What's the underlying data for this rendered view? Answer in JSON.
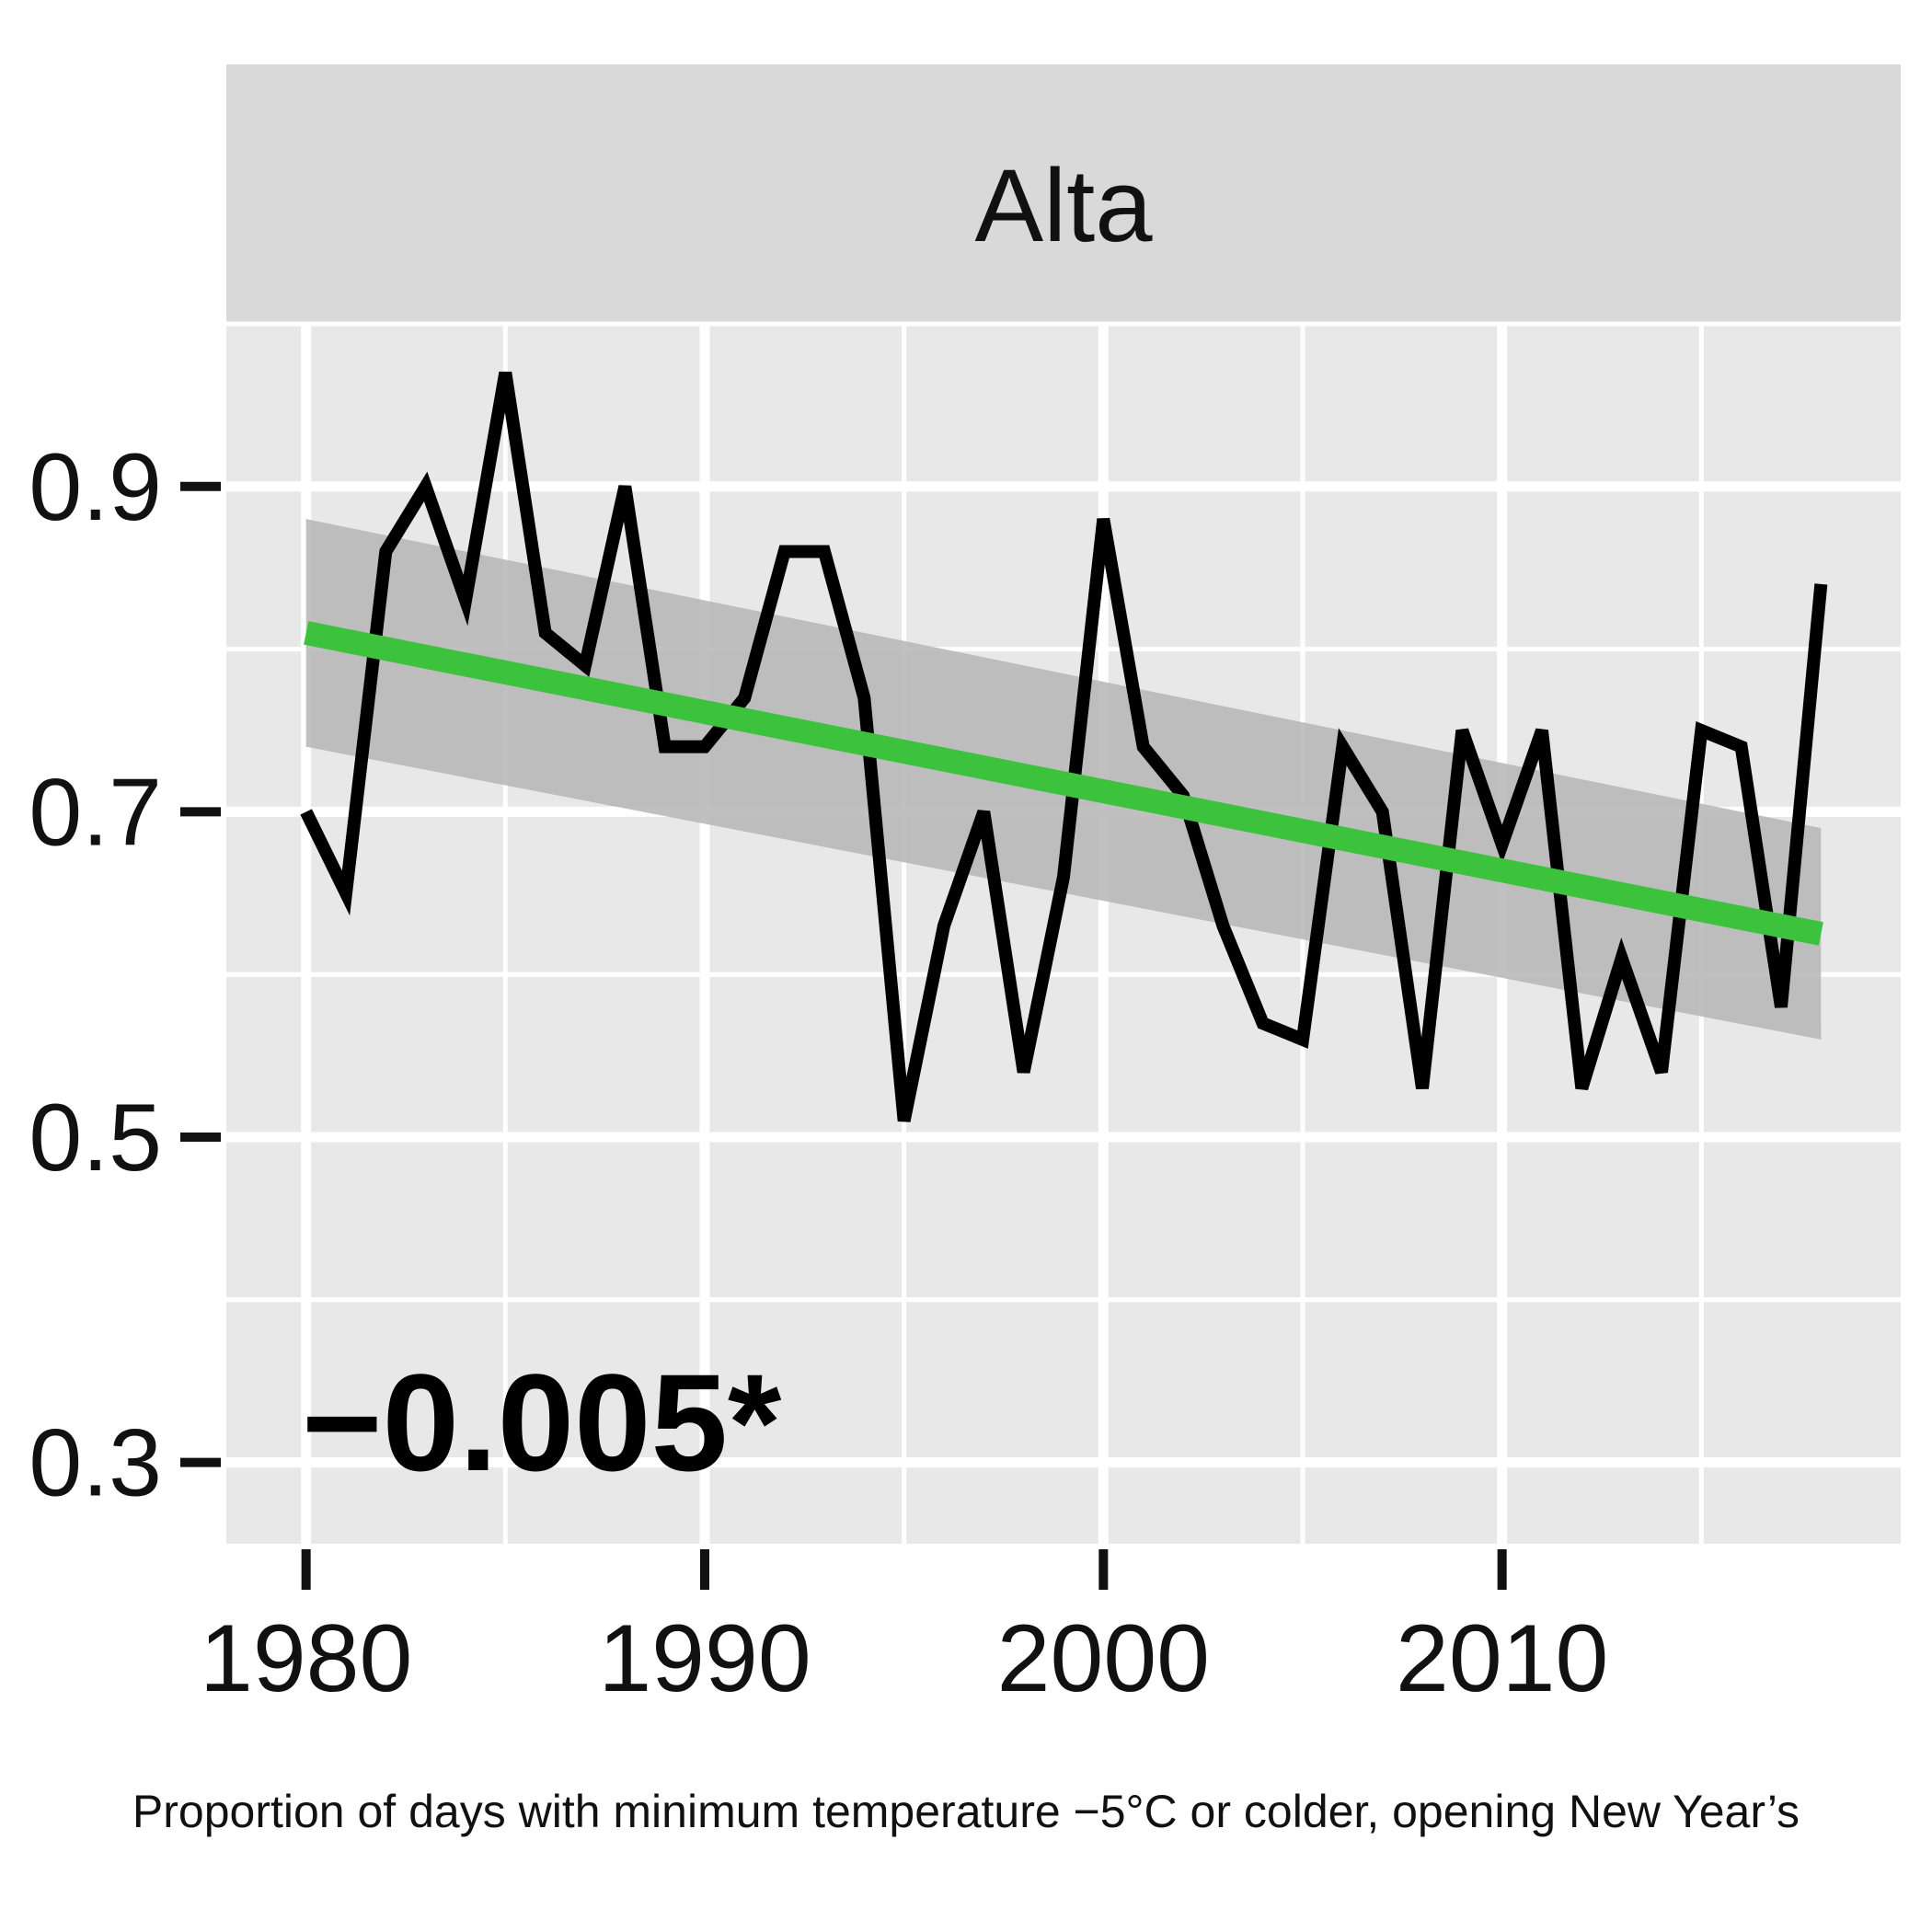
{
  "chart_data": {
    "type": "line",
    "panel_title": "Alta",
    "annotation": "−0.005*",
    "caption": "Proportion of days with minimum temperature −5°C or colder, opening New Year’s",
    "xlim": [
      1978,
      2020
    ],
    "ylim": [
      0.25,
      1.0
    ],
    "x_ticks": [
      1980,
      1990,
      2000,
      2010
    ],
    "x_minor": [
      1985,
      1995,
      2005,
      2015
    ],
    "y_ticks": [
      0.3,
      0.5,
      0.7,
      0.9
    ],
    "y_tick_labels": [
      "0.3",
      "0.5",
      "0.7",
      "0.9"
    ],
    "y_minor": [
      0.4,
      0.6,
      0.8,
      1.0
    ],
    "series": [
      {
        "x": [
          1980,
          1981,
          1982,
          1983,
          1984,
          1985,
          1986,
          1987,
          1988,
          1989,
          1990,
          1991,
          1992,
          1993,
          1994,
          1995,
          1996,
          1997,
          1998,
          1999,
          2000,
          2001,
          2002,
          2003,
          2004,
          2005,
          2006,
          2007,
          2008,
          2009,
          2010,
          2011,
          2012,
          2013,
          2014,
          2015,
          2016,
          2017,
          2018
        ],
        "y": [
          0.7,
          0.65,
          0.86,
          0.9,
          0.83,
          0.97,
          0.81,
          0.79,
          0.9,
          0.74,
          0.74,
          0.77,
          0.86,
          0.86,
          0.77,
          0.51,
          0.63,
          0.7,
          0.54,
          0.66,
          0.88,
          0.74,
          0.71,
          0.63,
          0.57,
          0.56,
          0.74,
          0.7,
          0.53,
          0.75,
          0.68,
          0.75,
          0.53,
          0.61,
          0.54,
          0.75,
          0.74,
          0.58,
          0.84
        ],
        "color": "#000000"
      }
    ],
    "trend": {
      "x": [
        1980,
        2018
      ],
      "y": [
        0.81,
        0.625
      ],
      "ci_lower": [
        0.74,
        0.56
      ],
      "ci_upper": [
        0.88,
        0.69
      ],
      "color": "#3dc23d",
      "band_color": "#b5b5b5"
    },
    "grid": true,
    "panel_background": "#e8e8e8",
    "strip_background": "#d9d9d9"
  }
}
